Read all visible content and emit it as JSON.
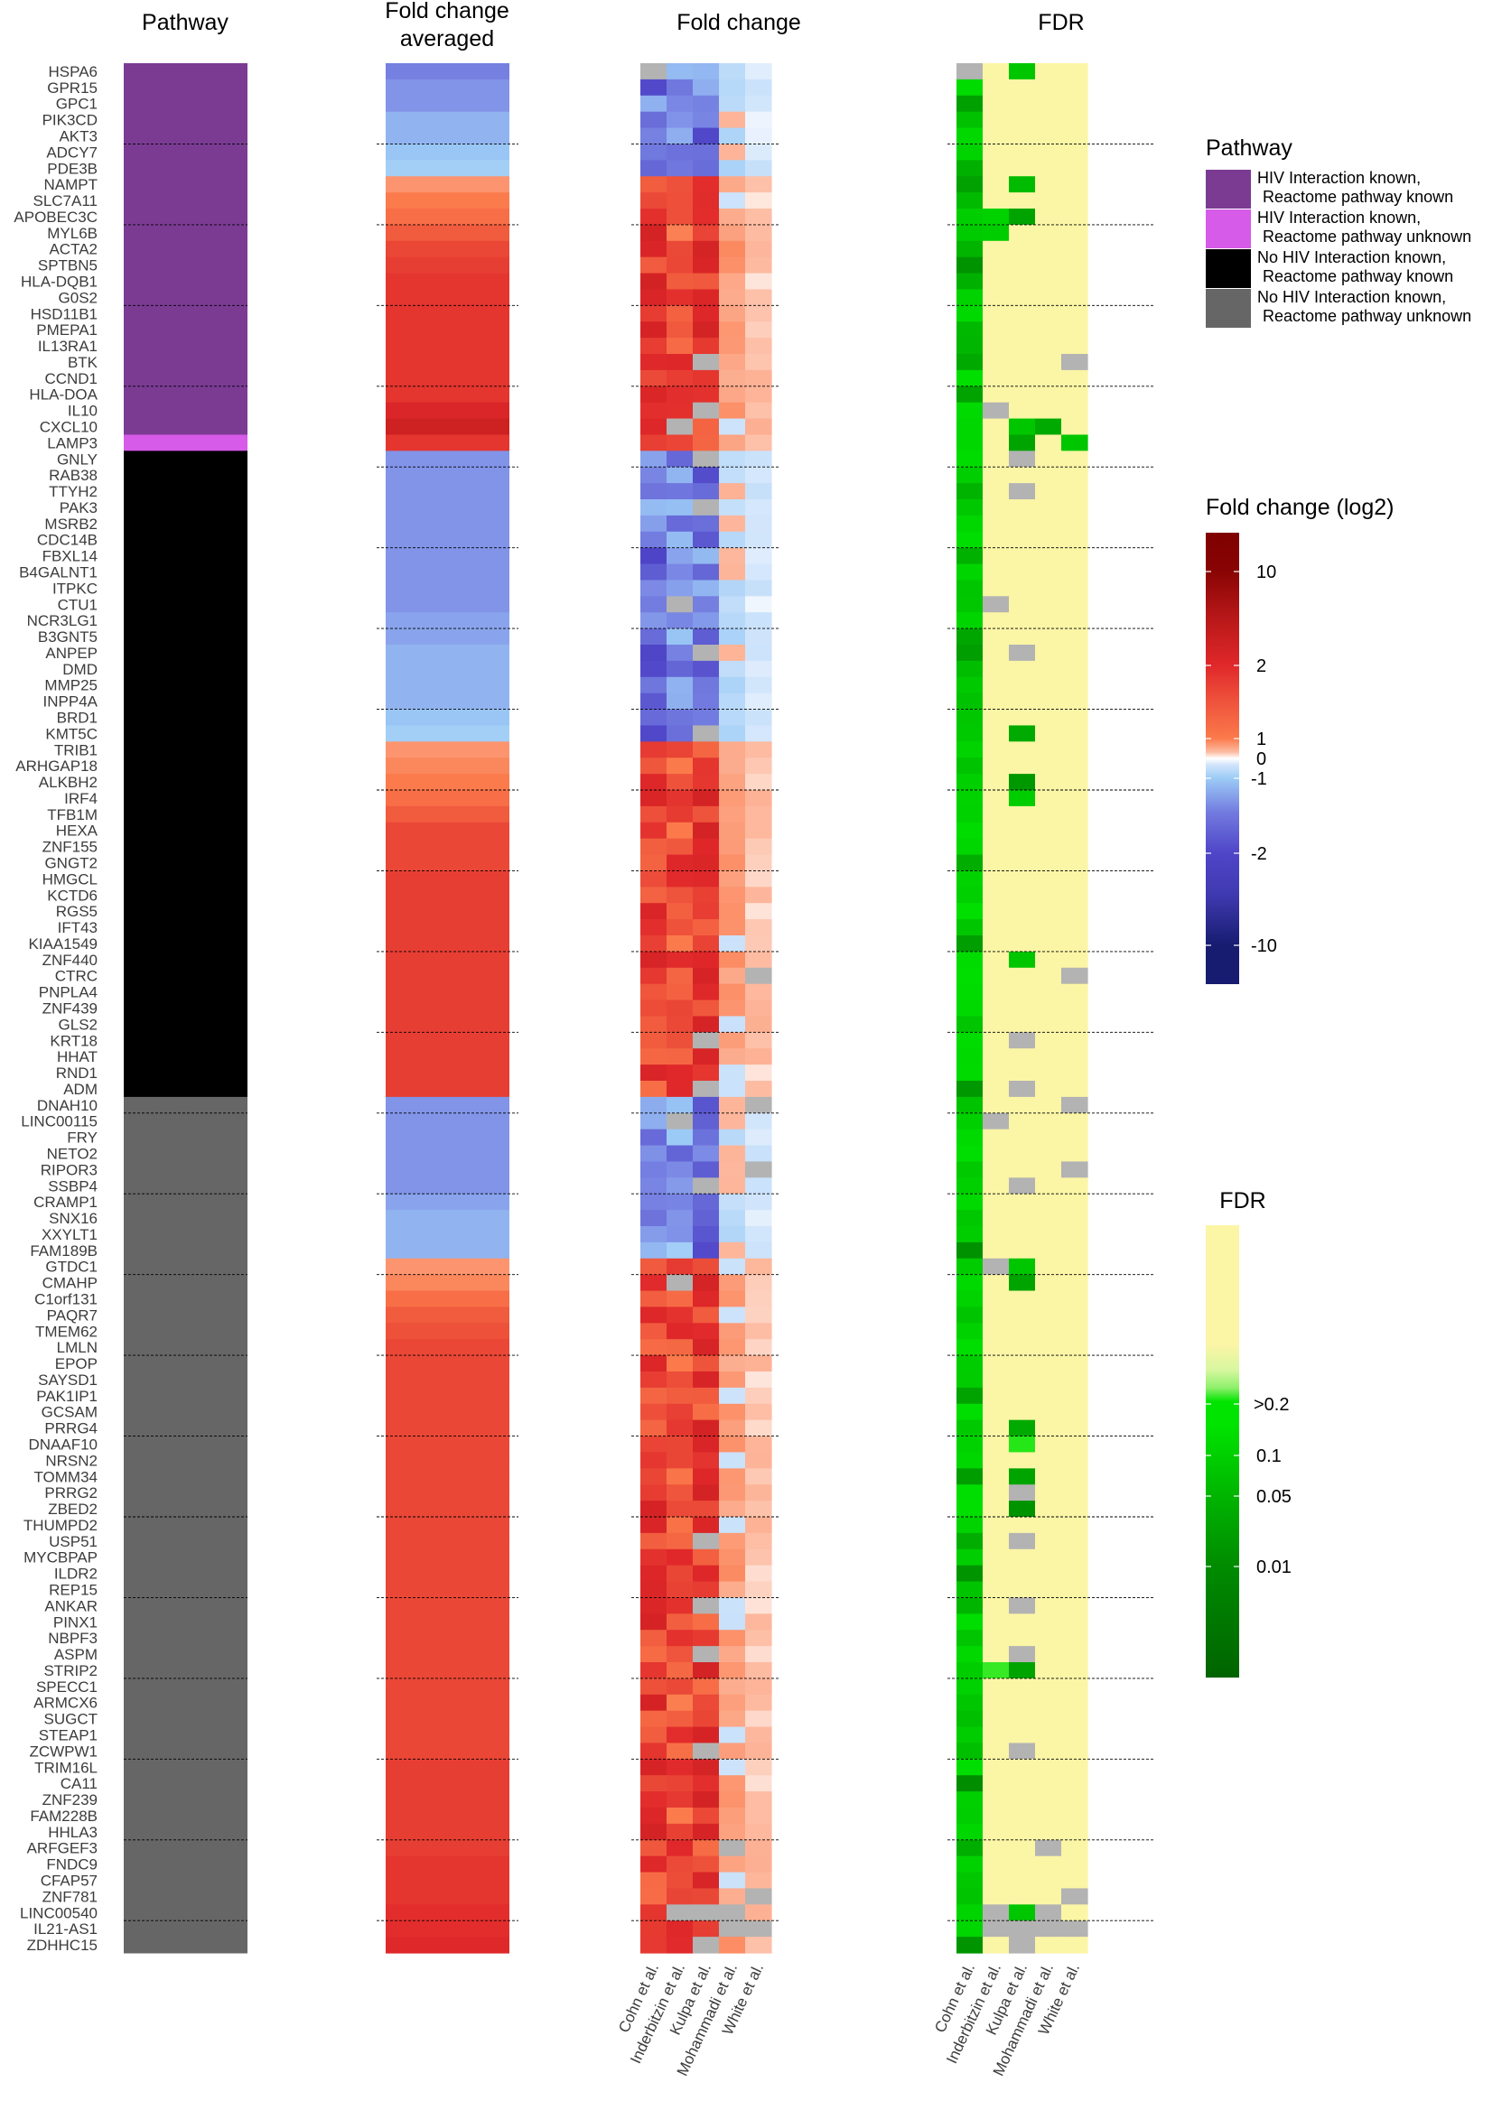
{
  "chart_data": {
    "type": "heatmap",
    "panel_titles": {
      "pathway": "Pathway",
      "fc_avg_line1": "Fold change",
      "fc_avg_line2": "averaged",
      "fc": "Fold change",
      "fdr": "FDR"
    },
    "studies": [
      "Cohn et al.",
      "Inderbitzin et al.",
      "Kulpa et al.",
      "Mohammadi et al.",
      "White et al."
    ],
    "genes": [
      "HSPA6",
      "GPR15",
      "GPC1",
      "PIK3CD",
      "AKT3",
      "ADCY7",
      "PDE3B",
      "NAMPT",
      "SLC7A11",
      "APOBEC3C",
      "MYL6B",
      "ACTA2",
      "SPTBN5",
      "HLA-DQB1",
      "G0S2",
      "HSD11B1",
      "PMEPA1",
      "IL13RA1",
      "BTK",
      "CCND1",
      "HLA-DOA",
      "IL10",
      "CXCL10",
      "LAMP3",
      "GNLY",
      "RAB38",
      "TTYH2",
      "PAK3",
      "MSRB2",
      "CDC14B",
      "FBXL14",
      "B4GALNT1",
      "ITPKC",
      "CTU1",
      "NCR3LG1",
      "B3GNT5",
      "ANPEP",
      "DMD",
      "MMP25",
      "INPP4A",
      "BRD1",
      "KMT5C",
      "TRIB1",
      "ARHGAP18",
      "ALKBH2",
      "IRF4",
      "TFB1M",
      "HEXA",
      "ZNF155",
      "GNGT2",
      "HMGCL",
      "KCTD6",
      "RGS5",
      "IFT43",
      "KIAA1549",
      "ZNF440",
      "CTRC",
      "PNPLA4",
      "ZNF439",
      "GLS2",
      "KRT18",
      "HHAT",
      "RND1",
      "ADM",
      "DNAH10",
      "LINC00115",
      "FRY",
      "NETO2",
      "RIPOR3",
      "SSBP4",
      "CRAMP1",
      "SNX16",
      "XXYLT1",
      "FAM189B",
      "GTDC1",
      "CMAHP",
      "C1orf131",
      "PAQR7",
      "TMEM62",
      "LMLN",
      "EPOP",
      "SAYSD1",
      "PAK1IP1",
      "GCSAM",
      "PRRG4",
      "DNAAF10",
      "NRSN2",
      "TOMM34",
      "PRRG2",
      "ZBED2",
      "THUMPD2",
      "USP51",
      "MYCBPAP",
      "ILDR2",
      "REP15",
      "ANKAR",
      "PINX1",
      "NBPF3",
      "ASPM",
      "STRIP2",
      "SPECC1",
      "ARMCX6",
      "SUGCT",
      "STEAP1",
      "ZCWPW1",
      "TRIM16L",
      "CA11",
      "ZNF239",
      "FAM228B",
      "HHLA3",
      "ARFGEF3",
      "FNDC9",
      "CFAP57",
      "ZNF781",
      "LINC00540",
      "IL21-AS1",
      "ZDHHC15"
    ],
    "pathway_groups": [
      {
        "label": "HIV Interaction known, Reactome pathway known",
        "line1": "HIV Interaction known,",
        "line2": "Reactome pathway known",
        "color": "#7b3b93",
        "count": 23
      },
      {
        "label": "HIV Interaction known, Reactome pathway unknown",
        "line1": "HIV Interaction known,",
        "line2": "Reactome pathway unknown",
        "color": "#d65be8",
        "count": 1
      },
      {
        "label": "No HIV Interaction known, Reactome pathway known",
        "line1": "No HIV Interaction known,",
        "line2": "Reactome pathway known",
        "color": "#000000",
        "count": 40
      },
      {
        "label": "No HIV Interaction known, Reactome pathway unknown",
        "line1": "No HIV Interaction known,",
        "line2": "Reactome pathway unknown",
        "color": "#666666",
        "count": 53
      }
    ],
    "fc_averaged_approx": [
      -1.4,
      -1.3,
      -1.3,
      -1.2,
      -1.2,
      -1.15,
      -1.1,
      1.05,
      1.15,
      1.2,
      1.3,
      1.4,
      1.45,
      1.5,
      1.5,
      1.5,
      1.5,
      1.5,
      1.5,
      1.5,
      1.5,
      1.7,
      2.0,
      1.5,
      -1.3,
      -1.3,
      -1.3,
      -1.3,
      -1.3,
      -1.3,
      -1.3,
      -1.3,
      -1.3,
      -1.3,
      -1.25,
      -1.25,
      -1.2,
      -1.2,
      -1.2,
      -1.2,
      -1.15,
      -1.1,
      1.05,
      1.1,
      1.15,
      1.2,
      1.3,
      1.4,
      1.4,
      1.4,
      1.45,
      1.45,
      1.45,
      1.45,
      1.45,
      1.45,
      1.45,
      1.45,
      1.45,
      1.45,
      1.45,
      1.45,
      1.45,
      1.45,
      -1.3,
      -1.3,
      -1.3,
      -1.3,
      -1.3,
      -1.3,
      -1.25,
      -1.2,
      -1.2,
      -1.2,
      1.05,
      1.1,
      1.2,
      1.3,
      1.35,
      1.4,
      1.4,
      1.4,
      1.4,
      1.4,
      1.4,
      1.4,
      1.4,
      1.4,
      1.4,
      1.4,
      1.4,
      1.4,
      1.4,
      1.4,
      1.4,
      1.4,
      1.4,
      1.4,
      1.4,
      1.4,
      1.4,
      1.4,
      1.4,
      1.4,
      1.4,
      1.45,
      1.45,
      1.45,
      1.45,
      1.45,
      1.45,
      1.5,
      1.5,
      1.5,
      1.55,
      1.55,
      1.6
    ],
    "fold_change_legend": {
      "title": "Fold change (log2)",
      "ticks": [
        "10",
        "2",
        "1",
        "0",
        "-1",
        "-2",
        "-10"
      ],
      "tick_values": [
        10,
        2,
        1,
        0,
        -1,
        -2,
        -10
      ]
    },
    "fdr_legend": {
      "title": "FDR",
      "ticks": [
        ">0.2",
        "0.1",
        "0.05",
        "0.01"
      ],
      "tick_values": [
        0.2,
        0.1,
        0.05,
        0.01
      ]
    },
    "missing_color": "#b3b3b3",
    "colors": {
      "fdr_background": "#fbf5a6",
      "fc_dark_red": "#7f0000",
      "fc_red": "#e0282a",
      "fc_orange": "#fb7a4b",
      "fc_white": "#ffffff",
      "fc_light_blue": "#9ccbf6",
      "fc_purple": "#5a4cca",
      "fc_navy": "#171c70",
      "fdr_bright_green": "#00e400",
      "fdr_dark_green": "#006400"
    }
  }
}
